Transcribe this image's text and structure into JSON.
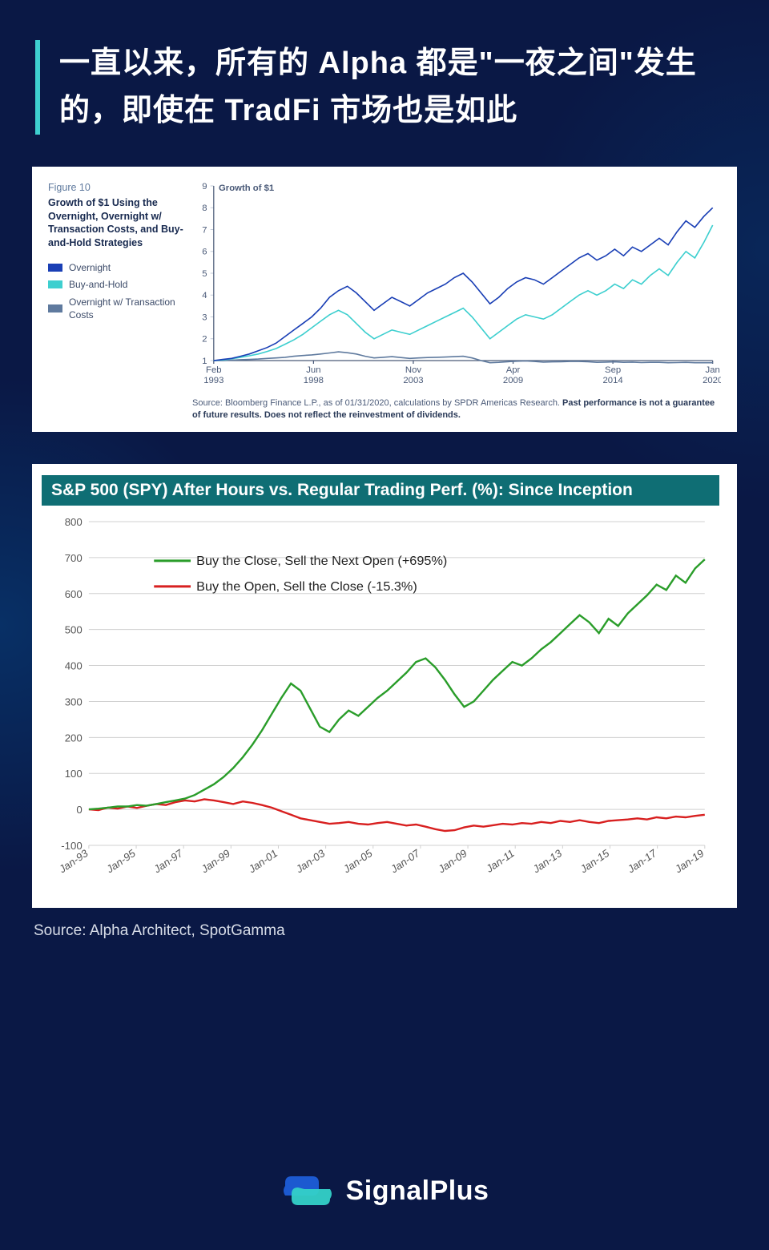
{
  "title": "一直以来，所有的 Alpha 都是\"一夜之间\"发生的，即使在 TradFi 市场也是如此",
  "chart1": {
    "figure_num": "Figure 10",
    "figure_title": "Growth of $1 Using the Overnight, Overnight w/ Transaction Costs, and Buy-and-Hold Strategies",
    "y_title": "Growth of $1",
    "legend": [
      {
        "label": "Overnight",
        "color": "#1a3fb5"
      },
      {
        "label": "Buy-and-Hold",
        "color": "#3ecfcf"
      },
      {
        "label": "Overnight w/ Transaction Costs",
        "color": "#5f7a9e"
      }
    ],
    "ylim": [
      1,
      9
    ],
    "ytick_step": 1,
    "x_labels": [
      "Feb\n1993",
      "Jun\n1998",
      "Nov\n2003",
      "Apr\n2009",
      "Sep\n2014",
      "Jan\n2020"
    ],
    "background_color": "#ffffff",
    "grid_color": "#c2cbd8",
    "line_width": 1.6,
    "series": {
      "overnight": {
        "color": "#1a3fb5",
        "points": [
          1.0,
          1.05,
          1.1,
          1.2,
          1.3,
          1.45,
          1.6,
          1.8,
          2.1,
          2.4,
          2.7,
          3.0,
          3.4,
          3.9,
          4.2,
          4.4,
          4.1,
          3.7,
          3.3,
          3.6,
          3.9,
          3.7,
          3.5,
          3.8,
          4.1,
          4.3,
          4.5,
          4.8,
          5.0,
          4.6,
          4.1,
          3.6,
          3.9,
          4.3,
          4.6,
          4.8,
          4.7,
          4.5,
          4.8,
          5.1,
          5.4,
          5.7,
          5.9,
          5.6,
          5.8,
          6.1,
          5.8,
          6.2,
          6.0,
          6.3,
          6.6,
          6.3,
          6.9,
          7.4,
          7.1,
          7.6,
          8.0
        ]
      },
      "buy_and_hold": {
        "color": "#3ecfcf",
        "points": [
          1.0,
          1.03,
          1.08,
          1.15,
          1.22,
          1.3,
          1.42,
          1.55,
          1.75,
          1.95,
          2.2,
          2.5,
          2.8,
          3.1,
          3.3,
          3.1,
          2.7,
          2.3,
          2.0,
          2.2,
          2.4,
          2.3,
          2.2,
          2.4,
          2.6,
          2.8,
          3.0,
          3.2,
          3.4,
          3.0,
          2.5,
          2.0,
          2.3,
          2.6,
          2.9,
          3.1,
          3.0,
          2.9,
          3.1,
          3.4,
          3.7,
          4.0,
          4.2,
          4.0,
          4.2,
          4.5,
          4.3,
          4.7,
          4.5,
          4.9,
          5.2,
          4.9,
          5.5,
          6.0,
          5.7,
          6.4,
          7.2
        ]
      },
      "overnight_tc": {
        "color": "#5f7a9e",
        "points": [
          1.0,
          1.0,
          1.02,
          1.04,
          1.05,
          1.07,
          1.1,
          1.12,
          1.15,
          1.2,
          1.23,
          1.26,
          1.3,
          1.35,
          1.4,
          1.36,
          1.3,
          1.2,
          1.12,
          1.15,
          1.18,
          1.14,
          1.1,
          1.12,
          1.14,
          1.15,
          1.16,
          1.18,
          1.2,
          1.12,
          1.0,
          0.9,
          0.92,
          0.95,
          0.97,
          0.98,
          0.96,
          0.93,
          0.94,
          0.95,
          0.96,
          0.96,
          0.95,
          0.92,
          0.93,
          0.94,
          0.92,
          0.93,
          0.91,
          0.92,
          0.92,
          0.9,
          0.91,
          0.92,
          0.9,
          0.9,
          0.9
        ]
      }
    },
    "source_prefix": "Source: Bloomberg Finance L.P., as of 01/31/2020, calculations by SPDR Americas Research. ",
    "source_bold": "Past performance is not a guarantee of future results. Does not reflect the reinvestment of dividends."
  },
  "chart2": {
    "title": "S&P 500 (SPY) After Hours vs. Regular Trading Perf. (%): Since Inception",
    "legend": [
      {
        "label": "Buy the Close, Sell the Next Open (+695%)",
        "color": "#2a9d2a"
      },
      {
        "label": "Buy the Open, Sell the Close (-15.3%)",
        "color": "#d82020"
      }
    ],
    "ylim": [
      -100,
      800
    ],
    "ytick_step": 100,
    "x_labels": [
      "Jan-93",
      "Jan-95",
      "Jan-97",
      "Jan-99",
      "Jan-01",
      "Jan-03",
      "Jan-05",
      "Jan-07",
      "Jan-09",
      "Jan-11",
      "Jan-13",
      "Jan-15",
      "Jan-17",
      "Jan-19"
    ],
    "background_color": "#ffffff",
    "grid_color": "#d0d0d0",
    "line_width": 2.4,
    "series": {
      "close_open": {
        "color": "#2a9d2a",
        "points": [
          0,
          2,
          5,
          8,
          8,
          12,
          10,
          15,
          20,
          25,
          30,
          40,
          55,
          70,
          90,
          115,
          145,
          180,
          220,
          265,
          310,
          350,
          330,
          280,
          230,
          215,
          250,
          275,
          260,
          285,
          310,
          330,
          355,
          380,
          410,
          420,
          395,
          360,
          320,
          285,
          300,
          330,
          360,
          385,
          410,
          400,
          420,
          445,
          465,
          490,
          515,
          540,
          520,
          490,
          530,
          510,
          545,
          570,
          595,
          625,
          610,
          650,
          630,
          670,
          695
        ]
      },
      "open_close": {
        "color": "#d82020",
        "points": [
          0,
          -2,
          5,
          2,
          8,
          4,
          10,
          15,
          12,
          20,
          25,
          22,
          28,
          25,
          20,
          15,
          22,
          18,
          12,
          5,
          -5,
          -15,
          -25,
          -30,
          -35,
          -40,
          -38,
          -35,
          -40,
          -42,
          -38,
          -35,
          -40,
          -45,
          -42,
          -48,
          -55,
          -60,
          -58,
          -50,
          -45,
          -48,
          -44,
          -40,
          -42,
          -38,
          -40,
          -35,
          -38,
          -32,
          -35,
          -30,
          -35,
          -38,
          -32,
          -30,
          -28,
          -25,
          -28,
          -22,
          -25,
          -20,
          -22,
          -18,
          -15
        ]
      }
    }
  },
  "source_below": "Source: Alpha Architect, SpotGamma",
  "brand": "SignalPlus",
  "brand_colors": {
    "a": "#1e5dd8",
    "b": "#34d1c8"
  }
}
